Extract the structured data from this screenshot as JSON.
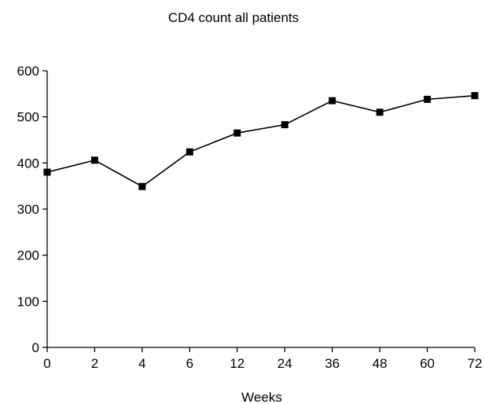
{
  "chart_data": {
    "type": "line",
    "title": "CD4 count all patients",
    "xlabel": "Weeks",
    "ylabel": "",
    "categories": [
      "0",
      "2",
      "4",
      "6",
      "12",
      "24",
      "36",
      "48",
      "60",
      "72"
    ],
    "y_ticks": [
      "0",
      "100",
      "200",
      "300",
      "400",
      "500",
      "600"
    ],
    "ylim": [
      0,
      600
    ],
    "grid": false,
    "legend": "none",
    "series": [
      {
        "values": [
          380,
          406,
          349,
          424,
          465,
          483,
          535,
          510,
          538,
          546
        ],
        "color": "#000000",
        "marker": "square"
      }
    ]
  }
}
